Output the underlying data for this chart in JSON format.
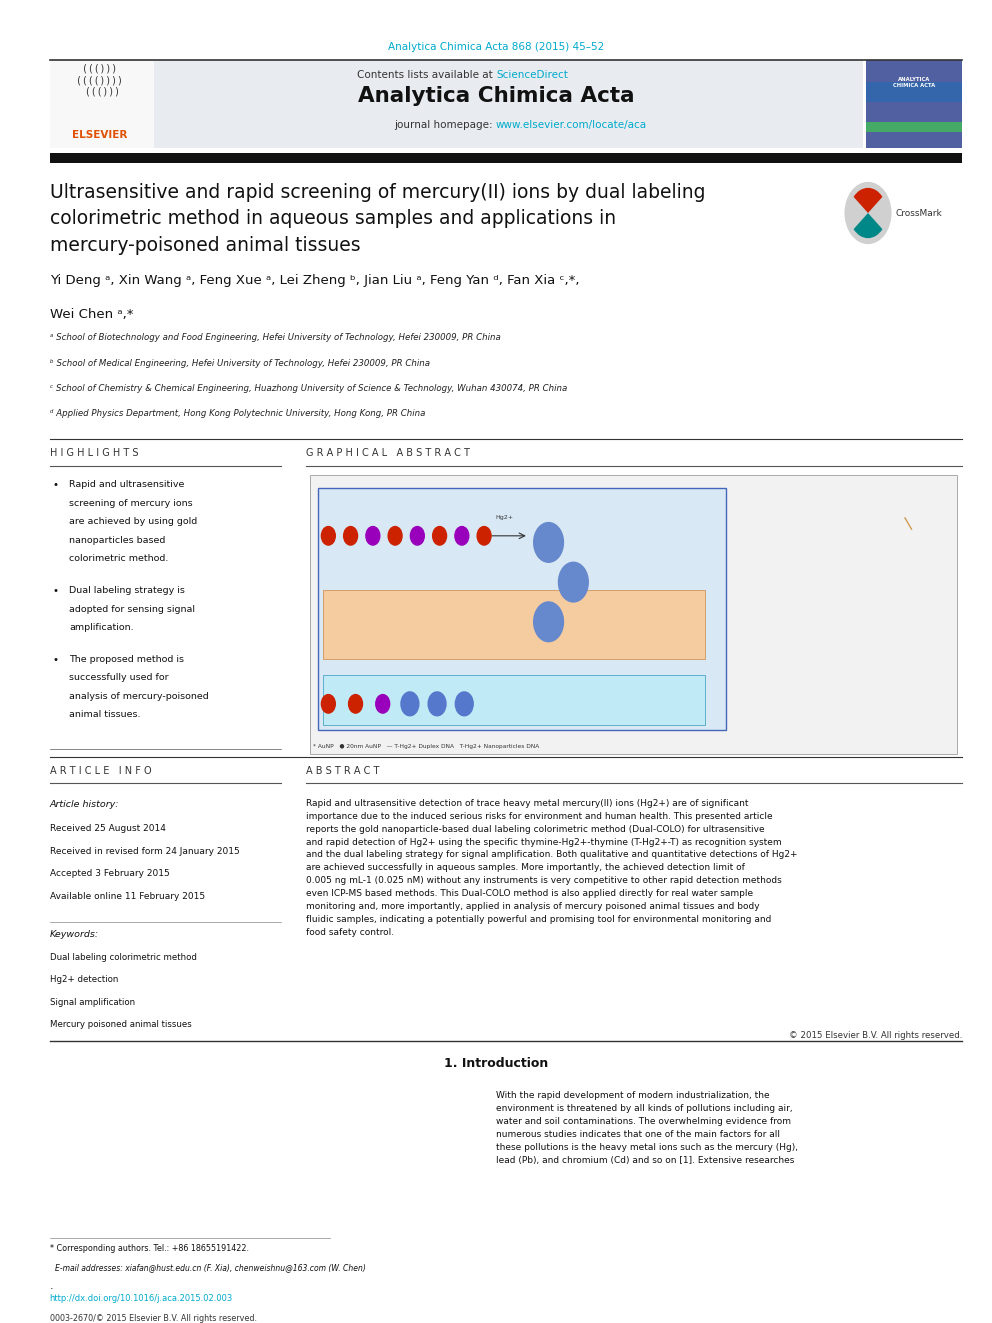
{
  "background_color": "#ffffff",
  "page_width": 9.92,
  "page_height": 13.23,
  "top_citation": "Analytica Chimica Acta 868 (2015) 45–52",
  "top_citation_color": "#00aacc",
  "journal_header_bg": "#e8edf2",
  "journal_name": "Analytica Chimica Acta",
  "contents_text": "Contents lists available at ",
  "sciencedirect_text": "ScienceDirect",
  "sciencedirect_color": "#00aacc",
  "journal_homepage_text": "journal homepage: ",
  "journal_url": "www.elsevier.com/locate/aca",
  "journal_url_color": "#00aacc",
  "thick_bar_color": "#1a1a1a",
  "article_title": "Ultrasensitive and rapid screening of mercury(II) ions by dual labeling\ncolorimetric method in aqueous samples and applications in\nmercury-poisoned animal tissues",
  "authors_line1": "Yi Deng ᵃ, Xin Wang ᵃ, Feng Xue ᵃ, Lei Zheng ᵇ, Jian Liu ᵃ, Feng Yan ᵈ, Fan Xia ᶜ,*,",
  "authors_line2": "Wei Chen ᵃ,*",
  "affil_a": "ᵃ School of Biotechnology and Food Engineering, Hefei University of Technology, Hefei 230009, PR China",
  "affil_b": "ᵇ School of Medical Engineering, Hefei University of Technology, Hefei 230009, PR China",
  "affil_c": "ᶜ School of Chemistry & Chemical Engineering, Huazhong University of Science & Technology, Wuhan 430074, PR China",
  "affil_d": "ᵈ Applied Physics Department, Hong Kong Polytechnic University, Hong Kong, PR China",
  "thin_line_color": "#555555",
  "highlights_title": "H I G H L I G H T S",
  "highlights": [
    "Rapid and ultrasensitive screening of mercury ions are achieved by using gold nanoparticles based colorimetric method.",
    "Dual labeling strategy is adopted for sensing signal amplification.",
    "The proposed method is successfully used for analysis of mercury-poisoned animal tissues."
  ],
  "graphical_abstract_title": "G R A P H I C A L   A B S T R A C T",
  "article_info_title": "A R T I C L E   I N F O",
  "article_history_label": "Article history:",
  "received1": "Received 25 August 2014",
  "received2": "Received in revised form 24 January 2015",
  "accepted": "Accepted 3 February 2015",
  "available": "Available online 11 February 2015",
  "keywords_label": "Keywords:",
  "keywords": [
    "Dual labeling colorimetric method",
    "Hg2+ detection",
    "Signal amplification",
    "Mercury poisoned animal tissues"
  ],
  "abstract_title": "A B S T R A C T",
  "abstract_text": "Rapid and ultrasensitive detection of trace heavy metal mercury(II) ions (Hg2+) are of significant\nimportance due to the induced serious risks for environment and human health. This presented article\nreports the gold nanoparticle-based dual labeling colorimetric method (Dual-COLO) for ultrasensitive\nand rapid detection of Hg2+ using the specific thymine-Hg2+-thymine (T-Hg2+-T) as recognition system\nand the dual labeling strategy for signal amplification. Both qualitative and quantitative detections of Hg2+\nare achieved successfully in aqueous samples. More importantly, the achieved detection limit of\n0.005 ng mL-1 (0.025 nM) without any instruments is very competitive to other rapid detection methods\neven ICP-MS based methods. This Dual-COLO method is also applied directly for real water sample\nmonitoring and, more importantly, applied in analysis of mercury poisoned animal tissues and body\nfluidic samples, indicating a potentially powerful and promising tool for environmental monitoring and\nfood safety control.",
  "copyright_text": "© 2015 Elsevier B.V. All rights reserved.",
  "intro_section": "1. Introduction",
  "intro_text": "With the rapid development of modern industrialization, the\nenvironment is threatened by all kinds of pollutions including air,\nwater and soil contaminations. The overwhelming evidence from\nnumerous studies indicates that one of the main factors for all\nthese pollutions is the heavy metal ions such as the mercury (Hg),\nlead (Pb), and chromium (Cd) and so on [1]. Extensive researches",
  "footnote_corresponding": "* Corresponding authors. Tel.: +86 18655191422.",
  "footnote_email": "E-mail addresses: xiafan@hust.edu.cn (F. Xia), chenweishnu@163.com (W. Chen)",
  "doi_text": "http://dx.doi.org/10.1016/j.aca.2015.02.003",
  "doi_color": "#00aacc",
  "issn_text": "0003-2670/© 2015 Elsevier B.V. All rights reserved."
}
